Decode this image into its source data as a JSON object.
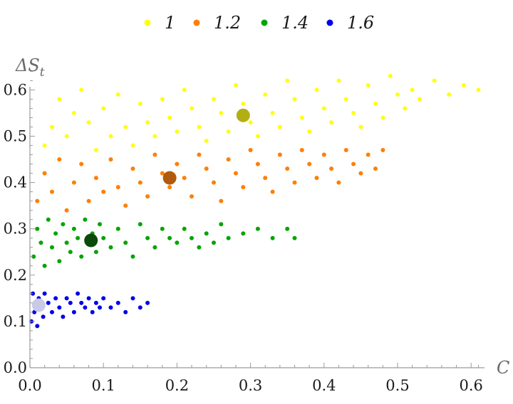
{
  "chart_data": {
    "type": "scatter",
    "title": "",
    "xlabel": "C",
    "ylabel": "ΔS_t",
    "ylabel_main": "ΔS",
    "ylabel_sub": "t",
    "xlim": [
      0,
      0.62
    ],
    "ylim": [
      0,
      0.65
    ],
    "xticks": [
      0.0,
      0.1,
      0.2,
      0.3,
      0.4,
      0.5,
      0.6
    ],
    "xtick_labels": [
      "0.0",
      "0.1",
      "0.2",
      "0.3",
      "0.4",
      "0.5",
      "0.6"
    ],
    "yticks": [
      0.0,
      0.1,
      0.2,
      0.3,
      0.4,
      0.5,
      0.6
    ],
    "ytick_labels": [
      "0.0",
      "0.1",
      "0.2",
      "0.3",
      "0.4",
      "0.5",
      "0.6"
    ],
    "grid": false,
    "legend_position": "top-center",
    "series": [
      {
        "name": "1",
        "color": "#FFFF14",
        "mean_color": "#B2AE13",
        "mean": [
          0.29,
          0.545
        ],
        "points": [
          [
            0.02,
            0.48
          ],
          [
            0.03,
            0.52
          ],
          [
            0.04,
            0.58
          ],
          [
            0.05,
            0.5
          ],
          [
            0.06,
            0.55
          ],
          [
            0.07,
            0.6
          ],
          [
            0.08,
            0.53
          ],
          [
            0.09,
            0.47
          ],
          [
            0.1,
            0.56
          ],
          [
            0.11,
            0.5
          ],
          [
            0.12,
            0.59
          ],
          [
            0.13,
            0.52
          ],
          [
            0.14,
            0.48
          ],
          [
            0.15,
            0.57
          ],
          [
            0.16,
            0.53
          ],
          [
            0.17,
            0.5
          ],
          [
            0.18,
            0.58
          ],
          [
            0.19,
            0.54
          ],
          [
            0.2,
            0.51
          ],
          [
            0.21,
            0.6
          ],
          [
            0.22,
            0.56
          ],
          [
            0.23,
            0.52
          ],
          [
            0.24,
            0.49
          ],
          [
            0.25,
            0.58
          ],
          [
            0.26,
            0.55
          ],
          [
            0.27,
            0.51
          ],
          [
            0.28,
            0.61
          ],
          [
            0.29,
            0.57
          ],
          [
            0.3,
            0.53
          ],
          [
            0.31,
            0.5
          ],
          [
            0.32,
            0.59
          ],
          [
            0.33,
            0.55
          ],
          [
            0.34,
            0.52
          ],
          [
            0.35,
            0.62
          ],
          [
            0.36,
            0.58
          ],
          [
            0.37,
            0.54
          ],
          [
            0.38,
            0.51
          ],
          [
            0.39,
            0.6
          ],
          [
            0.4,
            0.56
          ],
          [
            0.41,
            0.53
          ],
          [
            0.42,
            0.62
          ],
          [
            0.43,
            0.58
          ],
          [
            0.44,
            0.55
          ],
          [
            0.45,
            0.52
          ],
          [
            0.46,
            0.61
          ],
          [
            0.47,
            0.57
          ],
          [
            0.48,
            0.54
          ],
          [
            0.49,
            0.63
          ],
          [
            0.5,
            0.59
          ],
          [
            0.51,
            0.56
          ],
          [
            0.52,
            0.6
          ],
          [
            0.53,
            0.58
          ],
          [
            0.55,
            0.62
          ],
          [
            0.57,
            0.59
          ],
          [
            0.59,
            0.61
          ],
          [
            0.61,
            0.6
          ]
        ]
      },
      {
        "name": "1.2",
        "color": "#FF7F00",
        "mean_color": "#B25A0C",
        "mean": [
          0.19,
          0.41
        ],
        "points": [
          [
            0.01,
            0.36
          ],
          [
            0.02,
            0.42
          ],
          [
            0.03,
            0.38
          ],
          [
            0.04,
            0.45
          ],
          [
            0.05,
            0.34
          ],
          [
            0.06,
            0.4
          ],
          [
            0.07,
            0.44
          ],
          [
            0.08,
            0.36
          ],
          [
            0.09,
            0.41
          ],
          [
            0.1,
            0.38
          ],
          [
            0.11,
            0.45
          ],
          [
            0.12,
            0.39
          ],
          [
            0.13,
            0.35
          ],
          [
            0.14,
            0.43
          ],
          [
            0.15,
            0.4
          ],
          [
            0.16,
            0.37
          ],
          [
            0.17,
            0.46
          ],
          [
            0.18,
            0.42
          ],
          [
            0.19,
            0.39
          ],
          [
            0.2,
            0.44
          ],
          [
            0.21,
            0.41
          ],
          [
            0.22,
            0.37
          ],
          [
            0.23,
            0.46
          ],
          [
            0.24,
            0.43
          ],
          [
            0.25,
            0.4
          ],
          [
            0.26,
            0.36
          ],
          [
            0.27,
            0.45
          ],
          [
            0.28,
            0.42
          ],
          [
            0.29,
            0.39
          ],
          [
            0.3,
            0.47
          ],
          [
            0.31,
            0.44
          ],
          [
            0.32,
            0.41
          ],
          [
            0.33,
            0.38
          ],
          [
            0.34,
            0.46
          ],
          [
            0.35,
            0.43
          ],
          [
            0.36,
            0.4
          ],
          [
            0.37,
            0.47
          ],
          [
            0.38,
            0.44
          ],
          [
            0.39,
            0.41
          ],
          [
            0.4,
            0.46
          ],
          [
            0.41,
            0.43
          ],
          [
            0.42,
            0.4
          ],
          [
            0.43,
            0.47
          ],
          [
            0.44,
            0.44
          ],
          [
            0.45,
            0.42
          ],
          [
            0.46,
            0.46
          ],
          [
            0.47,
            0.43
          ],
          [
            0.48,
            0.47
          ]
        ]
      },
      {
        "name": "1.4",
        "color": "#00A500",
        "mean_color": "#0A4A0A",
        "mean": [
          0.083,
          0.275
        ],
        "points": [
          [
            0.005,
            0.24
          ],
          [
            0.01,
            0.3
          ],
          [
            0.015,
            0.27
          ],
          [
            0.02,
            0.22
          ],
          [
            0.025,
            0.32
          ],
          [
            0.03,
            0.26
          ],
          [
            0.035,
            0.29
          ],
          [
            0.04,
            0.23
          ],
          [
            0.045,
            0.31
          ],
          [
            0.05,
            0.27
          ],
          [
            0.055,
            0.25
          ],
          [
            0.06,
            0.3
          ],
          [
            0.065,
            0.28
          ],
          [
            0.07,
            0.24
          ],
          [
            0.075,
            0.32
          ],
          [
            0.08,
            0.27
          ],
          [
            0.085,
            0.29
          ],
          [
            0.09,
            0.25
          ],
          [
            0.095,
            0.31
          ],
          [
            0.1,
            0.28
          ],
          [
            0.11,
            0.26
          ],
          [
            0.12,
            0.3
          ],
          [
            0.13,
            0.27
          ],
          [
            0.14,
            0.24
          ],
          [
            0.15,
            0.31
          ],
          [
            0.16,
            0.28
          ],
          [
            0.17,
            0.26
          ],
          [
            0.18,
            0.3
          ],
          [
            0.19,
            0.28
          ],
          [
            0.2,
            0.27
          ],
          [
            0.21,
            0.3
          ],
          [
            0.22,
            0.28
          ],
          [
            0.23,
            0.26
          ],
          [
            0.24,
            0.29
          ],
          [
            0.25,
            0.27
          ],
          [
            0.26,
            0.31
          ],
          [
            0.27,
            0.28
          ],
          [
            0.29,
            0.29
          ],
          [
            0.31,
            0.3
          ],
          [
            0.33,
            0.28
          ],
          [
            0.35,
            0.3
          ],
          [
            0.36,
            0.28
          ]
        ]
      },
      {
        "name": "1.6",
        "color": "#0000E6",
        "mean_color": "#C9C9E8",
        "mean": [
          0.012,
          0.135
        ],
        "points": [
          [
            0.002,
            0.1
          ],
          [
            0.004,
            0.16
          ],
          [
            0.006,
            0.12
          ],
          [
            0.008,
            0.14
          ],
          [
            0.01,
            0.09
          ],
          [
            0.012,
            0.15
          ],
          [
            0.015,
            0.13
          ],
          [
            0.018,
            0.11
          ],
          [
            0.02,
            0.16
          ],
          [
            0.025,
            0.14
          ],
          [
            0.03,
            0.12
          ],
          [
            0.035,
            0.15
          ],
          [
            0.04,
            0.13
          ],
          [
            0.045,
            0.11
          ],
          [
            0.05,
            0.15
          ],
          [
            0.055,
            0.14
          ],
          [
            0.06,
            0.12
          ],
          [
            0.065,
            0.16
          ],
          [
            0.07,
            0.14
          ],
          [
            0.075,
            0.13
          ],
          [
            0.08,
            0.15
          ],
          [
            0.085,
            0.12
          ],
          [
            0.09,
            0.14
          ],
          [
            0.095,
            0.13
          ],
          [
            0.1,
            0.15
          ],
          [
            0.11,
            0.13
          ],
          [
            0.12,
            0.14
          ],
          [
            0.13,
            0.12
          ],
          [
            0.14,
            0.15
          ],
          [
            0.15,
            0.13
          ],
          [
            0.16,
            0.14
          ]
        ]
      }
    ]
  }
}
